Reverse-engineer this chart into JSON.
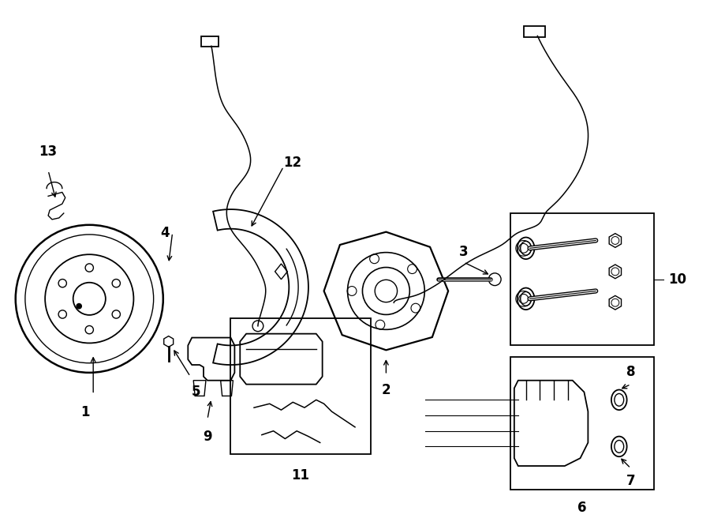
{
  "background_color": "#ffffff",
  "line_color": "#000000",
  "figsize": [
    9.0,
    6.61
  ],
  "dpi": 100
}
